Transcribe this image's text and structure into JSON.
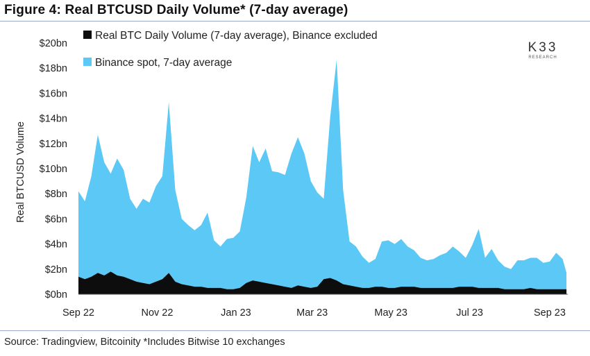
{
  "figure": {
    "title": "Figure 4: Real BTCUSD Daily Volume* (7-day average)",
    "source": "Source: Tradingview, Bitcoinity *Includes Bitwise 10 exchanges"
  },
  "logo": {
    "main": "K33",
    "sub": "RESEARCH"
  },
  "chart_data": {
    "type": "area",
    "stacked": true,
    "ylabel": "Real BTCUSD Volume",
    "ylim": [
      0,
      20
    ],
    "yticks": [
      0,
      2,
      4,
      6,
      8,
      10,
      12,
      14,
      16,
      18,
      20
    ],
    "ytick_labels": [
      "$0bn",
      "$2bn",
      "$4bn",
      "$6bn",
      "$8bn",
      "$10bn",
      "$12bn",
      "$14bn",
      "$16bn",
      "$18bn",
      "$20bn"
    ],
    "xlim": [
      "2022-09-01",
      "2023-09-15"
    ],
    "xticks": [
      "2022-09-01",
      "2022-11-01",
      "2023-01-01",
      "2023-03-01",
      "2023-05-01",
      "2023-07-01",
      "2023-09-01"
    ],
    "xtick_labels": [
      "Sep 22",
      "Nov 22",
      "Jan 23",
      "Mar 23",
      "May 23",
      "Jul 23",
      "Sep 23"
    ],
    "grid": false,
    "legend_position": "top-left",
    "x": [
      "2022-09-01",
      "2022-09-06",
      "2022-09-11",
      "2022-09-16",
      "2022-09-21",
      "2022-09-26",
      "2022-10-01",
      "2022-10-06",
      "2022-10-11",
      "2022-10-16",
      "2022-10-21",
      "2022-10-26",
      "2022-10-31",
      "2022-11-05",
      "2022-11-10",
      "2022-11-15",
      "2022-11-20",
      "2022-11-25",
      "2022-11-30",
      "2022-12-05",
      "2022-12-10",
      "2022-12-15",
      "2022-12-20",
      "2022-12-25",
      "2022-12-30",
      "2023-01-04",
      "2023-01-09",
      "2023-01-14",
      "2023-01-19",
      "2023-01-24",
      "2023-01-29",
      "2023-02-03",
      "2023-02-08",
      "2023-02-13",
      "2023-02-18",
      "2023-02-23",
      "2023-02-28",
      "2023-03-05",
      "2023-03-10",
      "2023-03-15",
      "2023-03-20",
      "2023-03-25",
      "2023-03-30",
      "2023-04-04",
      "2023-04-09",
      "2023-04-14",
      "2023-04-19",
      "2023-04-24",
      "2023-04-29",
      "2023-05-04",
      "2023-05-09",
      "2023-05-14",
      "2023-05-19",
      "2023-05-24",
      "2023-05-29",
      "2023-06-03",
      "2023-06-08",
      "2023-06-13",
      "2023-06-18",
      "2023-06-23",
      "2023-06-28",
      "2023-07-03",
      "2023-07-08",
      "2023-07-13",
      "2023-07-18",
      "2023-07-23",
      "2023-07-28",
      "2023-08-02",
      "2023-08-07",
      "2023-08-12",
      "2023-08-17",
      "2023-08-22",
      "2023-08-27",
      "2023-09-01",
      "2023-09-06",
      "2023-09-11",
      "2023-09-14"
    ],
    "series": [
      {
        "name": "Real BTC Daily Volume (7-day average), Binance excluded",
        "color": "#0d0d0d",
        "values": [
          1.4,
          1.2,
          1.4,
          1.7,
          1.5,
          1.8,
          1.5,
          1.4,
          1.2,
          1.0,
          0.9,
          0.8,
          1.0,
          1.2,
          1.7,
          1.0,
          0.8,
          0.7,
          0.6,
          0.6,
          0.5,
          0.5,
          0.5,
          0.4,
          0.4,
          0.5,
          0.9,
          1.1,
          1.0,
          0.9,
          0.8,
          0.7,
          0.6,
          0.5,
          0.7,
          0.6,
          0.5,
          0.6,
          1.2,
          1.3,
          1.1,
          0.8,
          0.7,
          0.6,
          0.5,
          0.5,
          0.6,
          0.6,
          0.5,
          0.5,
          0.6,
          0.6,
          0.6,
          0.5,
          0.5,
          0.5,
          0.5,
          0.5,
          0.5,
          0.6,
          0.6,
          0.6,
          0.5,
          0.5,
          0.5,
          0.5,
          0.4,
          0.4,
          0.4,
          0.4,
          0.5,
          0.4,
          0.4,
          0.4,
          0.4,
          0.4,
          0.4
        ]
      },
      {
        "name": "Binance spot, 7-day average",
        "color": "#5bc8f5",
        "values": [
          6.8,
          6.2,
          8.0,
          11.0,
          9.0,
          7.8,
          9.3,
          8.5,
          6.4,
          5.8,
          6.7,
          6.5,
          7.6,
          8.2,
          13.6,
          7.3,
          5.2,
          4.8,
          4.5,
          4.9,
          6.0,
          3.8,
          3.3,
          4.0,
          4.1,
          4.5,
          6.8,
          10.7,
          9.5,
          10.7,
          9.0,
          9.0,
          8.9,
          10.7,
          11.8,
          10.6,
          8.5,
          7.5,
          6.4,
          12.8,
          17.6,
          7.5,
          3.5,
          3.2,
          2.5,
          2.0,
          2.2,
          3.6,
          3.8,
          3.5,
          3.8,
          3.2,
          2.9,
          2.4,
          2.2,
          2.3,
          2.6,
          2.8,
          3.3,
          2.8,
          2.3,
          3.3,
          4.7,
          2.4,
          3.1,
          2.2,
          1.8,
          1.6,
          2.3,
          2.3,
          2.4,
          2.5,
          2.1,
          2.2,
          2.9,
          2.4,
          1.3
        ]
      }
    ]
  }
}
